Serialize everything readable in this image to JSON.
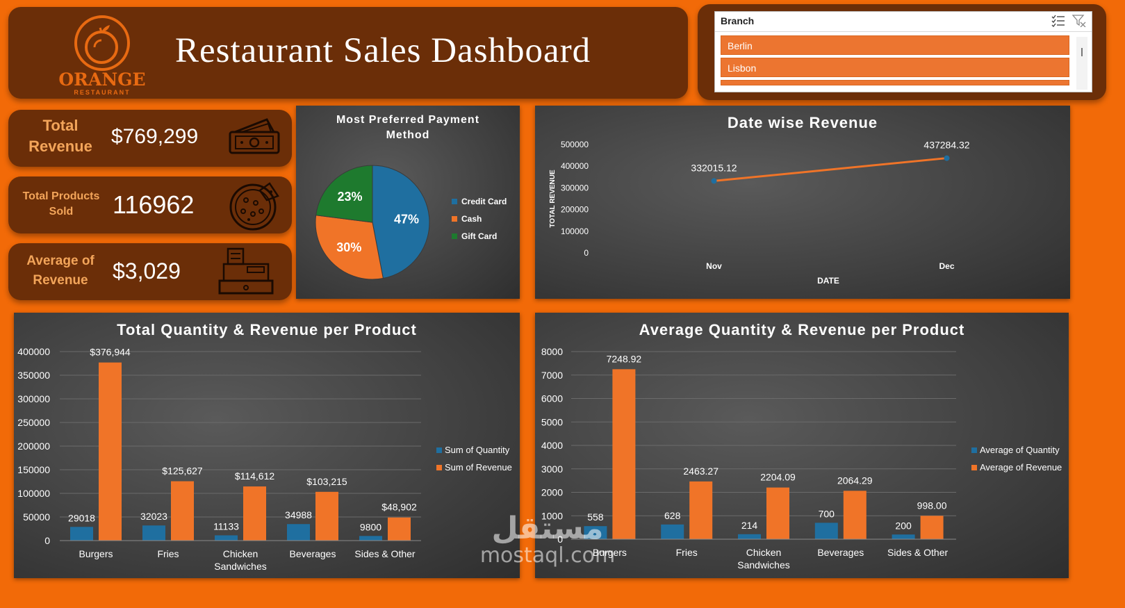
{
  "header": {
    "title": "Restaurant Sales Dashboard",
    "logo_name": "ORANGE",
    "logo_sub": "RESTAURANT"
  },
  "slicer": {
    "title": "Branch",
    "icons": [
      "multi-select-icon",
      "clear-filter-icon"
    ],
    "items": [
      "Berlin",
      "Lisbon"
    ]
  },
  "kpis": [
    {
      "label_lines": [
        "Total",
        "Revenue"
      ],
      "value": "$769,299",
      "icon": "cash-icon"
    },
    {
      "label_lines": [
        "Total Products",
        "Sold"
      ],
      "value": "116962",
      "icon": "pizza-icon"
    },
    {
      "label_lines": [
        "Average of",
        "Revenue"
      ],
      "value": "$3,029",
      "icon": "cash-register-icon"
    }
  ],
  "colors": {
    "background": "#f26a08",
    "panel": "#6b2e08",
    "series_blue": "#1f6fa0",
    "series_orange": "#f07428",
    "series_green": "#1e7a2e"
  },
  "chart_data": [
    {
      "id": "payment",
      "type": "pie",
      "title_lines": [
        "Most Preferred Payment",
        "Method"
      ],
      "labels": [
        "Credit Card",
        "Cash",
        "Gift Card"
      ],
      "values": [
        47,
        30,
        23
      ],
      "data_labels": [
        "47%",
        "30%",
        "23%"
      ],
      "legend": "right"
    },
    {
      "id": "date_revenue",
      "type": "line",
      "title": "Date wise Revenue",
      "xlabel": "DATE",
      "ylabel": "TOTAL REVENUE",
      "categories": [
        "Nov",
        "Dec"
      ],
      "values": [
        332015.12,
        437284.32
      ],
      "data_labels": [
        "332015.12",
        "437284.32"
      ],
      "ylim": [
        0,
        500000
      ],
      "yticks": [
        "0",
        "100000",
        "200000",
        "300000",
        "400000",
        "500000"
      ],
      "grid": false
    },
    {
      "id": "total_per_product",
      "type": "bar",
      "title": "Total Quantity & Revenue per Product",
      "categories": [
        [
          "Burgers"
        ],
        [
          "Fries"
        ],
        [
          "Chicken",
          "Sandwiches"
        ],
        [
          "Beverages"
        ],
        [
          "Sides & Other"
        ]
      ],
      "series": [
        {
          "name": "Sum of Quantity",
          "values": [
            29018,
            32023,
            11133,
            34988,
            9800
          ],
          "labels": [
            "29018",
            "32023",
            "11133",
            "34988",
            "9800"
          ]
        },
        {
          "name": "Sum of Revenue",
          "values": [
            376944,
            125627,
            114612,
            103215,
            48902
          ],
          "labels": [
            "$376,944",
            "$125,627",
            "$114,612",
            "$103,215",
            "$48,902"
          ]
        }
      ],
      "ylim": [
        0,
        400000
      ],
      "yticks": [
        "0",
        "50000",
        "100000",
        "150000",
        "200000",
        "250000",
        "300000",
        "350000",
        "400000"
      ],
      "grid": true,
      "legend": "right"
    },
    {
      "id": "avg_per_product",
      "type": "bar",
      "title": "Average Quantity & Revenue per Product",
      "categories": [
        [
          "Burgers"
        ],
        [
          "Fries"
        ],
        [
          "Chicken",
          "Sandwiches"
        ],
        [
          "Beverages"
        ],
        [
          "Sides & Other"
        ]
      ],
      "series": [
        {
          "name": "Average of Quantity",
          "values": [
            558,
            628,
            214,
            700,
            200
          ],
          "labels": [
            "558",
            "628",
            "214",
            "700",
            "200"
          ]
        },
        {
          "name": "Average of Revenue",
          "values": [
            7248.92,
            2463.27,
            2204.09,
            2064.29,
            998.0
          ],
          "labels": [
            "7248.92",
            "2463.27",
            "2204.09",
            "2064.29",
            "998.00"
          ]
        }
      ],
      "ylim": [
        0,
        8000
      ],
      "yticks": [
        "0",
        "1000",
        "2000",
        "3000",
        "4000",
        "5000",
        "6000",
        "7000",
        "8000"
      ],
      "grid": true,
      "legend": "right"
    }
  ],
  "watermark": {
    "arabic": "مستقل",
    "latin": "mostaql.com"
  }
}
